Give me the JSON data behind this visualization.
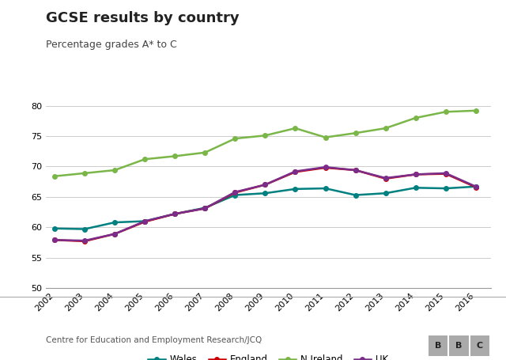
{
  "title": "GCSE results by country",
  "subtitle": "Percentage grades A* to C",
  "source": "Centre for Education and Employment Research/JCQ",
  "years": [
    2002,
    2003,
    2004,
    2005,
    2006,
    2007,
    2008,
    2009,
    2010,
    2011,
    2012,
    2013,
    2014,
    2015,
    2016
  ],
  "wales": [
    59.8,
    59.7,
    60.8,
    61.0,
    62.2,
    63.2,
    65.3,
    65.6,
    66.3,
    66.4,
    65.3,
    65.6,
    66.5,
    66.4,
    66.7
  ],
  "england": [
    57.9,
    57.7,
    58.9,
    60.9,
    62.2,
    63.1,
    65.7,
    67.0,
    69.1,
    69.8,
    69.4,
    68.0,
    68.7,
    68.8,
    66.6
  ],
  "nireland": [
    68.4,
    68.9,
    69.4,
    71.2,
    71.7,
    72.3,
    74.6,
    75.1,
    76.3,
    74.8,
    75.5,
    76.3,
    78.0,
    79.0,
    79.2
  ],
  "uk": [
    57.9,
    57.8,
    58.9,
    61.0,
    62.2,
    63.1,
    65.8,
    67.0,
    69.2,
    69.9,
    69.4,
    68.1,
    68.7,
    68.9,
    66.7
  ],
  "wales_color": "#008080",
  "england_color": "#cc0000",
  "nireland_color": "#7ab648",
  "uk_color": "#7b2d8b",
  "ylim": [
    50,
    82
  ],
  "yticks": [
    50,
    55,
    60,
    65,
    70,
    75,
    80
  ],
  "bg_color": "#ffffff",
  "grid_color": "#cccccc",
  "title_fontsize": 13,
  "subtitle_fontsize": 9,
  "tick_fontsize": 8,
  "legend_fontsize": 8.5,
  "source_fontsize": 7.5,
  "line_width": 1.8,
  "marker_size": 4,
  "marker": "o"
}
